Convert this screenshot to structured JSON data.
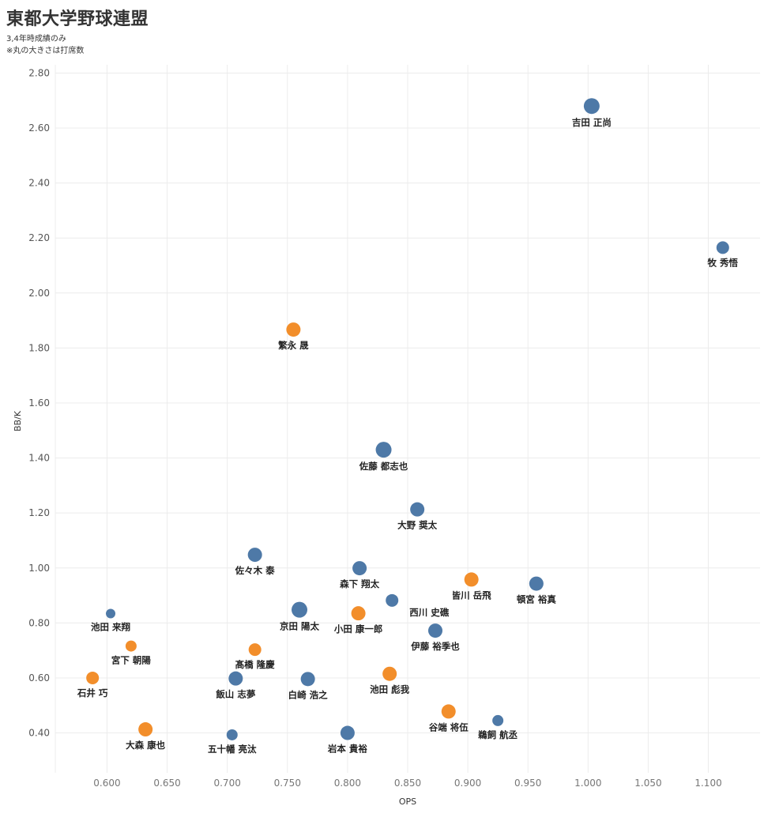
{
  "header": {
    "title": "東都大学野球連盟",
    "subtitle1": "3,4年時成績のみ",
    "subtitle2": "※丸の大きさは打席数"
  },
  "chart_data": {
    "type": "scatter",
    "title": "東都大学野球連盟",
    "subtitle": "3,4年時成績のみ / ※丸の大きさは打席数",
    "xlabel": "OPS",
    "ylabel": "BB/K",
    "xlim": [
      0.557,
      1.143
    ],
    "ylim": [
      0.255,
      2.83
    ],
    "xticks": [
      "0.600",
      "0.650",
      "0.700",
      "0.750",
      "0.800",
      "0.850",
      "0.900",
      "0.950",
      "1.000",
      "1.050",
      "1.100"
    ],
    "yticks": [
      "0.40",
      "0.60",
      "0.80",
      "1.00",
      "1.20",
      "1.40",
      "1.60",
      "1.80",
      "2.00",
      "2.20",
      "2.40",
      "2.60",
      "2.80"
    ],
    "grid": true,
    "colors": {
      "blue": "#4e79a7",
      "orange": "#f28e2b"
    },
    "series": [
      {
        "name": "blue",
        "color": "#4e79a7"
      },
      {
        "name": "orange",
        "color": "#f28e2b"
      }
    ],
    "points": [
      {
        "name": "吉田 正尚",
        "x": 1.003,
        "y": 2.68,
        "size": 10,
        "color": "blue"
      },
      {
        "name": "牧 秀悟",
        "x": 1.112,
        "y": 2.165,
        "size": 8,
        "color": "blue"
      },
      {
        "name": "繁永 晟",
        "x": 0.755,
        "y": 1.867,
        "size": 9,
        "color": "orange"
      },
      {
        "name": "佐藤 都志也",
        "x": 0.83,
        "y": 1.43,
        "size": 10,
        "color": "blue"
      },
      {
        "name": "大野 奨太",
        "x": 0.858,
        "y": 1.213,
        "size": 9,
        "color": "blue"
      },
      {
        "name": "佐々木 泰",
        "x": 0.723,
        "y": 1.048,
        "size": 9,
        "color": "blue"
      },
      {
        "name": "森下 翔太",
        "x": 0.81,
        "y": 0.999,
        "size": 9,
        "color": "blue"
      },
      {
        "name": "皆川 岳飛",
        "x": 0.903,
        "y": 0.958,
        "size": 9,
        "color": "orange"
      },
      {
        "name": "頓宮 裕真",
        "x": 0.957,
        "y": 0.943,
        "size": 9,
        "color": "blue"
      },
      {
        "name": "西川 史礁",
        "x": 0.837,
        "y": 0.882,
        "size": 8,
        "color": "blue"
      },
      {
        "name": "京田 陽太",
        "x": 0.76,
        "y": 0.848,
        "size": 10,
        "color": "blue"
      },
      {
        "name": "小田 康一郎",
        "x": 0.809,
        "y": 0.835,
        "size": 9,
        "color": "orange"
      },
      {
        "name": "池田 来翔",
        "x": 0.603,
        "y": 0.834,
        "size": 6,
        "color": "blue"
      },
      {
        "name": "伊藤 裕季也",
        "x": 0.873,
        "y": 0.772,
        "size": 9,
        "color": "blue"
      },
      {
        "name": "宮下 朝陽",
        "x": 0.62,
        "y": 0.716,
        "size": 7,
        "color": "orange"
      },
      {
        "name": "髙橋 隆慶",
        "x": 0.723,
        "y": 0.703,
        "size": 8,
        "color": "orange"
      },
      {
        "name": "池田 彪我",
        "x": 0.835,
        "y": 0.615,
        "size": 9,
        "color": "orange"
      },
      {
        "name": "石井 巧",
        "x": 0.588,
        "y": 0.6,
        "size": 8,
        "color": "orange"
      },
      {
        "name": "飯山 志夢",
        "x": 0.707,
        "y": 0.598,
        "size": 9,
        "color": "blue"
      },
      {
        "name": "白崎 浩之",
        "x": 0.767,
        "y": 0.596,
        "size": 9,
        "color": "blue"
      },
      {
        "name": "谷端 将伍",
        "x": 0.884,
        "y": 0.478,
        "size": 9,
        "color": "orange"
      },
      {
        "name": "鵜飼 航丞",
        "x": 0.925,
        "y": 0.445,
        "size": 7,
        "color": "blue"
      },
      {
        "name": "大森 康也",
        "x": 0.632,
        "y": 0.413,
        "size": 9,
        "color": "orange"
      },
      {
        "name": "岩本 貴裕",
        "x": 0.8,
        "y": 0.4,
        "size": 9,
        "color": "blue"
      },
      {
        "name": "五十幡 亮汰",
        "x": 0.704,
        "y": 0.393,
        "size": 7,
        "color": "blue"
      }
    ]
  }
}
